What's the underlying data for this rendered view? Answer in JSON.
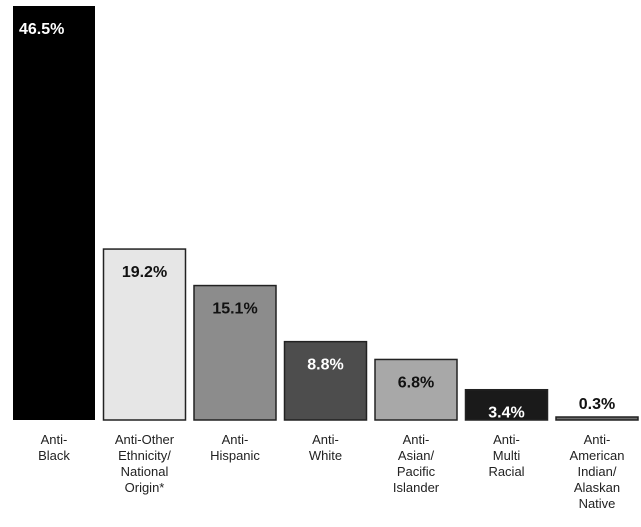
{
  "chart_data": {
    "type": "bar",
    "title": "",
    "xlabel": "",
    "ylabel": "",
    "ylim": [
      0,
      46.5
    ],
    "grid": false,
    "legend": "none",
    "categories": [
      [
        "Anti-",
        "Black"
      ],
      [
        "Anti-Other",
        "Ethnicity/",
        "National",
        "Origin*"
      ],
      [
        "Anti-",
        "Hispanic"
      ],
      [
        "Anti-",
        "White"
      ],
      [
        "Anti-",
        "Asian/",
        "Pacific",
        "Islander"
      ],
      [
        "Anti-",
        "Multi",
        "Racial"
      ],
      [
        "Anti-",
        "American",
        "Indian/",
        "Alaskan",
        "Native"
      ]
    ],
    "values": [
      46.5,
      19.2,
      15.1,
      8.8,
      6.8,
      3.4,
      0.3
    ],
    "value_labels": [
      "46.5%",
      "19.2%",
      "15.1%",
      "8.8%",
      "6.8%",
      "3.4%",
      "0.3%"
    ],
    "bar_colors": [
      "#000000",
      "#e6e6e6",
      "#8c8c8c",
      "#4d4d4d",
      "#a8a8a8",
      "#1a1a1a",
      "#6e6e6e"
    ],
    "value_label_colors": [
      "#ffffff",
      "#111111",
      "#111111",
      "#ffffff",
      "#111111",
      "#ffffff",
      "#111111"
    ]
  }
}
